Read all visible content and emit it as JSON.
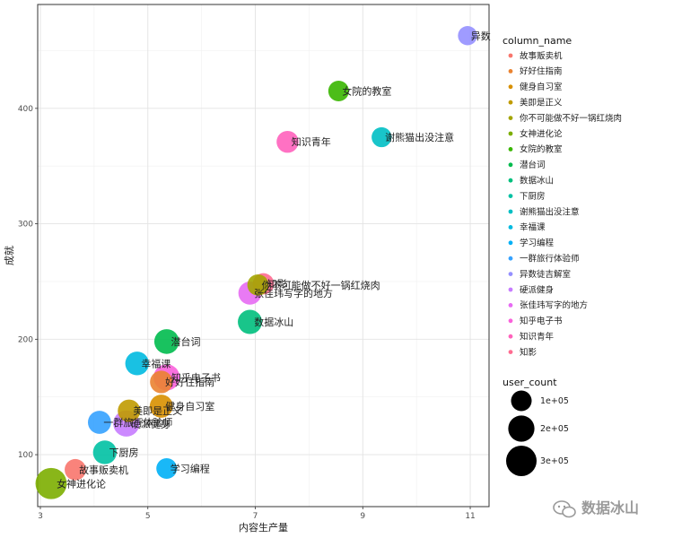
{
  "chart_data": {
    "type": "scatter",
    "xlabel": "内容生产量",
    "ylabel": "成就",
    "x_ticks": [
      3,
      5,
      7,
      9,
      11
    ],
    "y_ticks": [
      100,
      200,
      300,
      400
    ],
    "xlim": [
      2.95,
      11.35
    ],
    "ylim": [
      55,
      490
    ],
    "grid": true,
    "legend_color_title": "column_name",
    "legend_size_title": "user_count",
    "size_legend_labels": [
      "1e+05",
      "2e+05",
      "3e+05"
    ],
    "size_legend_values": [
      100000,
      200000,
      300000
    ],
    "categories": [
      {
        "name": "故事贩卖机",
        "color": "#F8766D"
      },
      {
        "name": "好好住指南",
        "color": "#EA8331"
      },
      {
        "name": "健身自习室",
        "color": "#D89000"
      },
      {
        "name": "美即是正义",
        "color": "#C09B00"
      },
      {
        "name": "你不可能做不好一锅红烧肉",
        "color": "#A3A500"
      },
      {
        "name": "女神进化论",
        "color": "#7CAE00"
      },
      {
        "name": "女院的教室",
        "color": "#39B600"
      },
      {
        "name": "潜台词",
        "color": "#00BB4E"
      },
      {
        "name": "数据冰山",
        "color": "#00BF7D"
      },
      {
        "name": "下厨房",
        "color": "#00C1A3"
      },
      {
        "name": "谢熊猫出没注意",
        "color": "#00BFC4"
      },
      {
        "name": "幸福课",
        "color": "#00BAE0"
      },
      {
        "name": "学习编程",
        "color": "#00B0F6"
      },
      {
        "name": "一群旅行体验师",
        "color": "#35A2FF"
      },
      {
        "name": "异数徒吉解室",
        "color": "#9590FF"
      },
      {
        "name": "硬派健身",
        "color": "#C77CFF"
      },
      {
        "name": "张佳玮写字的地方",
        "color": "#E76BF3"
      },
      {
        "name": "知乎电子书",
        "color": "#FA62DB"
      },
      {
        "name": "知识青年",
        "color": "#FF62BC"
      },
      {
        "name": "知影",
        "color": "#FF6C91"
      }
    ],
    "points": [
      {
        "label": "异数",
        "x": 10.95,
        "y": 463,
        "size": 80000,
        "color": "#9590FF"
      },
      {
        "label": "女院的教室",
        "x": 8.55,
        "y": 415,
        "size": 100000,
        "color": "#39B600"
      },
      {
        "label": "知识青年",
        "x": 7.6,
        "y": 371,
        "size": 120000,
        "color": "#FF62BC"
      },
      {
        "label": "谢熊猫出没注意",
        "x": 9.35,
        "y": 375,
        "size": 90000,
        "color": "#00BFC4"
      },
      {
        "label": "知影",
        "x": 7.15,
        "y": 248,
        "size": 110000,
        "color": "#FF6C91"
      },
      {
        "label": "你不可能做不好一锅红烧肉",
        "x": 7.05,
        "y": 247,
        "size": 110000,
        "color": "#A3A500"
      },
      {
        "label": "张佳玮写字的地方",
        "x": 6.9,
        "y": 240,
        "size": 140000,
        "color": "#E76BF3"
      },
      {
        "label": "数据冰山",
        "x": 6.9,
        "y": 215,
        "size": 160000,
        "color": "#00BF7D"
      },
      {
        "label": "潜台词",
        "x": 5.35,
        "y": 198,
        "size": 170000,
        "color": "#00BB4E"
      },
      {
        "label": "幸福课",
        "x": 4.8,
        "y": 179,
        "size": 150000,
        "color": "#00BAE0"
      },
      {
        "label": "知乎电子书",
        "x": 5.35,
        "y": 167,
        "size": 200000,
        "color": "#FA62DB"
      },
      {
        "label": "好好住指南",
        "x": 5.25,
        "y": 163,
        "size": 130000,
        "color": "#EA8331"
      },
      {
        "label": "健身自习室",
        "x": 5.25,
        "y": 142,
        "size": 140000,
        "color": "#D89000"
      },
      {
        "label": "美即是正义",
        "x": 4.65,
        "y": 138,
        "size": 130000,
        "color": "#C09B00"
      },
      {
        "label": "一群旅行体验师",
        "x": 4.1,
        "y": 128,
        "size": 140000,
        "color": "#35A2FF"
      },
      {
        "label": "硬派健身",
        "x": 4.6,
        "y": 127,
        "size": 200000,
        "color": "#C77CFF"
      },
      {
        "label": "下厨房",
        "x": 4.2,
        "y": 102,
        "size": 150000,
        "color": "#00C1A3"
      },
      {
        "label": "故事贩卖机",
        "x": 3.65,
        "y": 87,
        "size": 110000,
        "color": "#F8766D"
      },
      {
        "label": "学习编程",
        "x": 5.35,
        "y": 88,
        "size": 100000,
        "color": "#00B0F6"
      },
      {
        "label": "女神进化论",
        "x": 3.2,
        "y": 75,
        "size": 320000,
        "color": "#7CAE00"
      }
    ]
  },
  "watermark": {
    "text": "数据冰山"
  }
}
